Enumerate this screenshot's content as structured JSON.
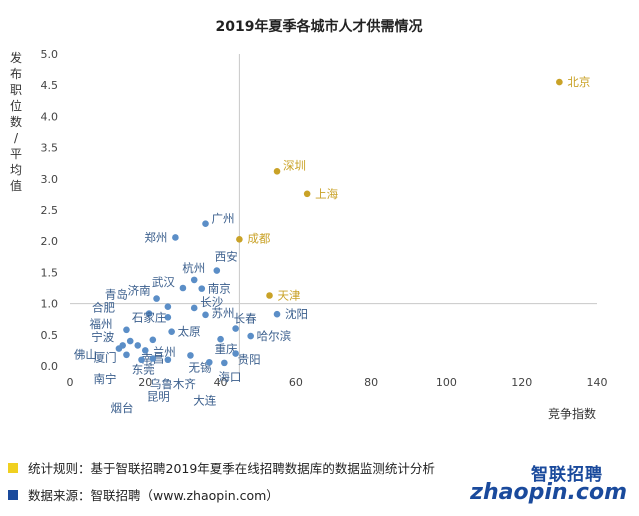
{
  "chart_data": {
    "type": "scatter",
    "title": "2019年夏季各城市人才供需情况",
    "xlabel": "竞争指数",
    "ylabel": "发布职位数/平均值",
    "xlim": [
      0,
      140
    ],
    "ylim": [
      0,
      5.0
    ],
    "xticks": [
      "0",
      "20",
      "40",
      "60",
      "80",
      "100",
      "120",
      "140"
    ],
    "yticks": [
      "0.0",
      "0.5",
      "1.0",
      "1.5",
      "2.0",
      "2.5",
      "3.0",
      "3.5",
      "4.0",
      "4.5",
      "5.0"
    ],
    "reference_lines": {
      "x": 45,
      "y": 1.0
    },
    "grid": false,
    "highlight_color": "#c9a227",
    "point_color": "#5b8ec7",
    "points": [
      {
        "name": "北京",
        "x": 130,
        "y": 4.55,
        "highlight": true
      },
      {
        "name": "深圳",
        "x": 55,
        "y": 3.12,
        "highlight": true
      },
      {
        "name": "上海",
        "x": 63,
        "y": 2.76,
        "highlight": true
      },
      {
        "name": "成都",
        "x": 45,
        "y": 2.03,
        "highlight": true
      },
      {
        "name": "天津",
        "x": 53,
        "y": 1.13,
        "highlight": true
      },
      {
        "name": "广州",
        "x": 36,
        "y": 2.28,
        "highlight": false
      },
      {
        "name": "郑州",
        "x": 28,
        "y": 2.06,
        "highlight": false
      },
      {
        "name": "西安",
        "x": 39,
        "y": 1.53,
        "highlight": false
      },
      {
        "name": "杭州",
        "x": 33,
        "y": 1.38,
        "highlight": false
      },
      {
        "name": "武汉",
        "x": 30,
        "y": 1.25,
        "highlight": false
      },
      {
        "name": "南京",
        "x": 35,
        "y": 1.24,
        "highlight": false
      },
      {
        "name": "济南",
        "x": 23,
        "y": 1.08,
        "highlight": false
      },
      {
        "name": "长沙",
        "x": 33,
        "y": 0.93,
        "highlight": false
      },
      {
        "name": "青岛",
        "x": 26,
        "y": 0.95,
        "highlight": false
      },
      {
        "name": "苏州",
        "x": 36,
        "y": 0.82,
        "highlight": false
      },
      {
        "name": "沈阳",
        "x": 55,
        "y": 0.83,
        "highlight": false
      },
      {
        "name": "合肥",
        "x": 21,
        "y": 0.84,
        "highlight": false
      },
      {
        "name": "石家庄",
        "x": 26,
        "y": 0.78,
        "highlight": false
      },
      {
        "name": "长春",
        "x": 44,
        "y": 0.6,
        "highlight": false
      },
      {
        "name": "福州",
        "x": 15,
        "y": 0.58,
        "highlight": false
      },
      {
        "name": "太原",
        "x": 27,
        "y": 0.55,
        "highlight": false
      },
      {
        "name": "哈尔滨",
        "x": 48,
        "y": 0.48,
        "highlight": false
      },
      {
        "name": "重庆",
        "x": 40,
        "y": 0.43,
        "highlight": false
      },
      {
        "name": "宁波",
        "x": 16,
        "y": 0.4,
        "highlight": false
      },
      {
        "name": "兰州",
        "x": 22,
        "y": 0.42,
        "highlight": false
      },
      {
        "name": "厦门",
        "x": 14,
        "y": 0.33,
        "highlight": false
      },
      {
        "name": "佛山",
        "x": 13,
        "y": 0.28,
        "highlight": false
      },
      {
        "name": "贵阳",
        "x": 44,
        "y": 0.2,
        "highlight": false
      },
      {
        "name": "南宁",
        "x": 15,
        "y": 0.18,
        "highlight": false
      },
      {
        "name": "南昌",
        "x": 20,
        "y": 0.25,
        "highlight": false
      },
      {
        "name": "无锡",
        "x": 32,
        "y": 0.17,
        "highlight": false
      },
      {
        "name": "东莞",
        "x": 18,
        "y": 0.33,
        "highlight": false
      },
      {
        "name": "海口",
        "x": 41,
        "y": 0.05,
        "highlight": false
      },
      {
        "name": "乌鲁木齐",
        "x": 26,
        "y": 0.1,
        "highlight": false
      },
      {
        "name": "昆明",
        "x": 22,
        "y": 0.12,
        "highlight": false
      },
      {
        "name": "烟台",
        "x": 19,
        "y": 0.1,
        "highlight": false
      },
      {
        "name": "大连",
        "x": 37,
        "y": 0.06,
        "highlight": false
      }
    ]
  },
  "footer": {
    "rule_text": "统计规则：基于智联招聘2019年夏季在线招聘数据库的数据监测统计分析",
    "source_text": "数据来源：智联招聘（www.zhaopin.com）",
    "rule_color": "#f0d020",
    "source_color": "#1a4a9c"
  },
  "brand": {
    "cn": "智联招聘",
    "en": "zhaopin.com"
  }
}
